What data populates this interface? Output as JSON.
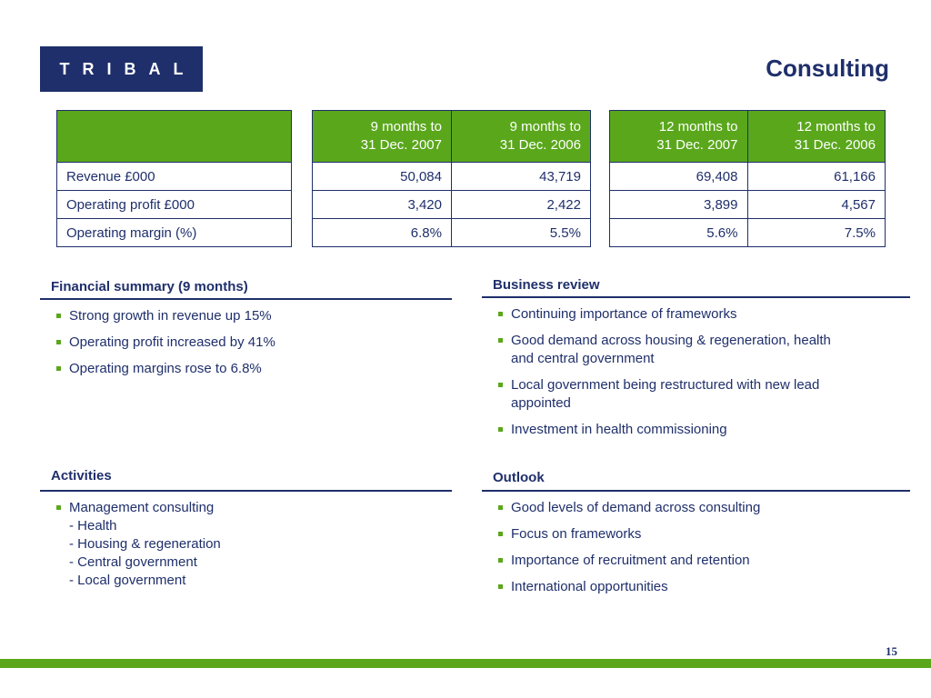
{
  "header": {
    "logo_text": "TRIBAL",
    "title": "Consulting"
  },
  "table": {
    "col_headers": [
      {
        "line1": "9 months to",
        "line2": "31 Dec. 2007"
      },
      {
        "line1": "9 months to",
        "line2": "31 Dec. 2006"
      },
      {
        "line1": "12 months to",
        "line2": "31 Dec. 2007"
      },
      {
        "line1": "12 months to",
        "line2": "31 Dec. 2006"
      }
    ],
    "rows": [
      {
        "label": "Revenue £000",
        "values": [
          "50,084",
          "43,719",
          "69,408",
          "61,166"
        ]
      },
      {
        "label": "Operating profit £000",
        "values": [
          "3,420",
          "2,422",
          "3,899",
          "4,567"
        ]
      },
      {
        "label": "Operating margin (%)",
        "values": [
          "6.8%",
          "5.5%",
          "5.6%",
          "7.5%"
        ]
      }
    ]
  },
  "financial_summary": {
    "heading": "Financial summary (9 months)",
    "items": [
      "Strong growth in revenue up 15%",
      "Operating profit increased by 41%",
      "Operating margins rose to 6.8%"
    ]
  },
  "business_review": {
    "heading": "Business review",
    "items": [
      [
        "Continuing importance of frameworks"
      ],
      [
        "Good demand across housing & regeneration, health",
        "and central government"
      ],
      [
        "Local government being restructured with new lead",
        "appointed"
      ],
      [
        "Investment in health commissioning"
      ]
    ]
  },
  "activities": {
    "heading": "Activities",
    "item_title": "Management consulting",
    "sub_items": [
      "- Health",
      "- Housing & regeneration",
      "- Central government",
      "- Local government"
    ]
  },
  "outlook": {
    "heading": "Outlook",
    "items": [
      "Good levels of demand across consulting",
      "Focus on frameworks",
      "Importance of recruitment and retention",
      "International opportunities"
    ]
  },
  "footer": {
    "page_number": "15",
    "bar_color": "#5aa71c"
  },
  "colors": {
    "brand_navy": "#1f2f6b",
    "accent_green": "#5aa71c"
  }
}
